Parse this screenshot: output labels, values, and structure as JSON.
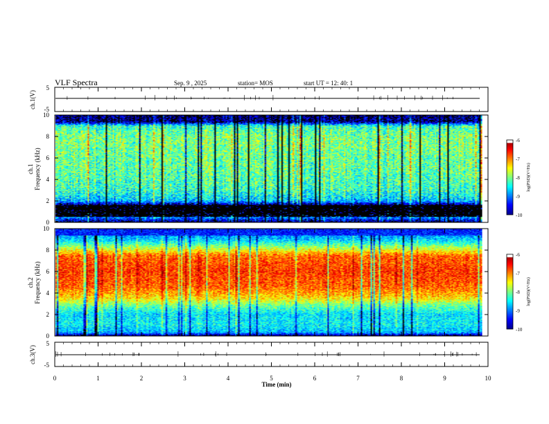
{
  "header": {
    "title": "VLF Spectra",
    "date": "Sep. 9  , 2025",
    "station": "station= MOS",
    "start_ut": "start  UT =   12: 40: 1"
  },
  "colors": {
    "colormap": [
      "#00008f",
      "#0000ff",
      "#0080ff",
      "#00ffff",
      "#80ff80",
      "#ffff00",
      "#ff8000",
      "#ff0000",
      "#800000",
      "#ffffff"
    ],
    "background": "#ffffff",
    "axis": "#000000"
  },
  "chart_data": [
    {
      "type": "line",
      "name": "ch1-waveform",
      "ylabel": "ch.1(V)",
      "ylim": [
        -5,
        5
      ],
      "yticks": [
        "5",
        "-5"
      ],
      "xlim": [
        0,
        10
      ],
      "baseline_value": 0,
      "description_values": {
        "signal_level": 0
      }
    },
    {
      "type": "heatmap",
      "name": "ch1-spectrogram",
      "ylabel": "ch.1",
      "ylabel2": "Frequency (kHz)",
      "ylim": [
        0,
        10
      ],
      "yticks": [
        "0",
        "2",
        "4",
        "6",
        "8",
        "10"
      ],
      "xlim": [
        0,
        10
      ],
      "data_end_min": 9.85,
      "colorbar": {
        "label": "log(PSD)(V²/Hz)",
        "range": [
          -10,
          -6
        ],
        "ticks": [
          "-6",
          "-7",
          "-8",
          "-9",
          "-10"
        ]
      },
      "profile_khz": [
        0,
        0.4,
        1.0,
        1.6,
        2.0,
        3.0,
        4.0,
        5.0,
        6.0,
        7.0,
        8.0,
        9.0,
        9.4,
        10.0
      ],
      "profile_log_psd": [
        -9.9,
        -9.0,
        -9.9,
        -9.9,
        -8.7,
        -8.3,
        -8.2,
        -8.1,
        -8.1,
        -8.0,
        -8.0,
        -8.3,
        -9.9,
        -9.9
      ]
    },
    {
      "type": "heatmap",
      "name": "ch2-spectrogram",
      "ylabel": "ch.2",
      "ylabel2": "Frequency (kHz)",
      "ylim": [
        0,
        10
      ],
      "yticks": [
        "0",
        "2",
        "4",
        "6",
        "8",
        "10"
      ],
      "xlim": [
        0,
        10
      ],
      "data_end_min": 9.85,
      "colorbar": {
        "label": "log(PSD)(V²/Hz)",
        "range": [
          -10,
          -6
        ],
        "ticks": [
          "-6",
          "-7",
          "-8",
          "-9",
          "-10"
        ]
      },
      "profile_khz": [
        0,
        0.3,
        1.0,
        2.0,
        2.8,
        3.5,
        4.5,
        6.0,
        7.5,
        8.3,
        9.0,
        10.0
      ],
      "profile_log_psd": [
        -9.9,
        -8.8,
        -8.5,
        -8.6,
        -8.1,
        -7.4,
        -6.9,
        -6.7,
        -6.9,
        -7.9,
        -8.7,
        -9.2
      ]
    },
    {
      "type": "line",
      "name": "ch3-waveform",
      "ylabel": "ch.3(V)",
      "ylim": [
        -5,
        5
      ],
      "yticks": [
        "5",
        "-5"
      ],
      "xlim": [
        0,
        10
      ],
      "baseline_value": 0,
      "xlabel": "Time  (min)",
      "xticks": [
        "0",
        "1",
        "2",
        "3",
        "4",
        "5",
        "6",
        "7",
        "8",
        "9",
        "10"
      ]
    }
  ]
}
